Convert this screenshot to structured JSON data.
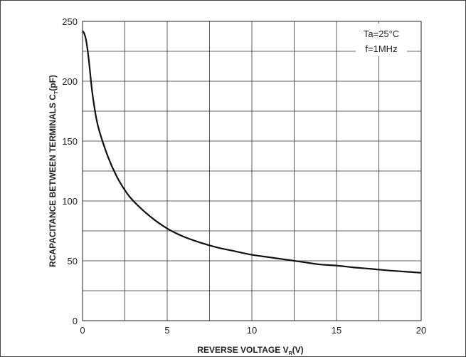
{
  "chart_data": {
    "type": "line",
    "title": "",
    "xlabel": {
      "main": "REVERSE VOLTAGE  V",
      "sub": "R",
      "unit": "(V)"
    },
    "ylabel": {
      "main": "RCAPACITANCE BETWEEN TERMINALS  C",
      "sub": "T",
      "unit": "(pF)"
    },
    "xlim": [
      0,
      20
    ],
    "ylim": [
      0,
      250
    ],
    "xticks": [
      0,
      5,
      10,
      15,
      20
    ],
    "yticks": [
      0,
      50,
      100,
      150,
      200,
      250
    ],
    "grid": true,
    "annotations": [
      "Ta=25°C",
      "f=1MHz"
    ],
    "series": [
      {
        "x": [
          0,
          0.1,
          0.2,
          0.3,
          0.4,
          0.5,
          0.6,
          0.8,
          1.0,
          1.5,
          2.0,
          2.5,
          3.0,
          4.0,
          5.0,
          6.0,
          7.0,
          8.0,
          9.0,
          10.0,
          11.0,
          12.0,
          13.0,
          14.0,
          15.0,
          16.0,
          17.0,
          18.0,
          19.0,
          20.0
        ],
        "y": [
          242,
          240,
          235,
          226,
          214,
          200,
          188,
          170,
          158,
          137,
          121,
          109,
          100,
          87,
          77,
          70,
          65,
          61,
          58,
          55,
          53,
          51,
          49,
          47,
          46,
          44.5,
          43.3,
          42,
          41,
          40
        ]
      }
    ]
  }
}
